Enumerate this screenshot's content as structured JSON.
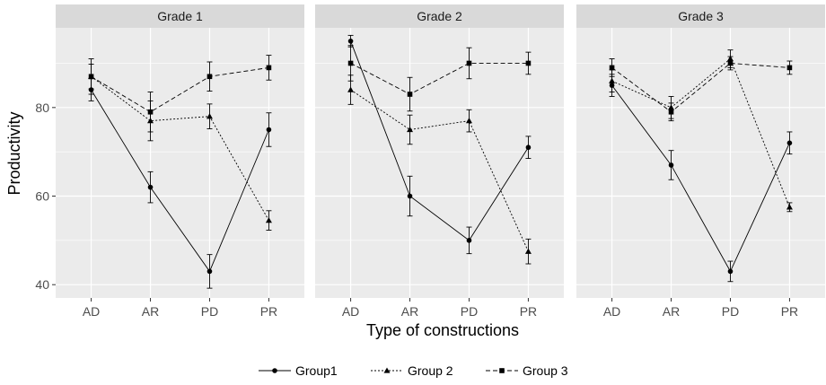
{
  "chart_data": {
    "type": "line",
    "facet_by": "grade",
    "xlabel": "Type of constructions",
    "ylabel": "Productivity",
    "categories": [
      "AD",
      "AR",
      "PD",
      "PR"
    ],
    "ylim": [
      37,
      98
    ],
    "yticks": [
      40,
      60,
      80
    ],
    "grid": true,
    "legend_position": "bottom",
    "panels": [
      {
        "title": "Grade 1",
        "series": [
          {
            "name": "Group1",
            "values": [
              84,
              62,
              43,
              75
            ],
            "err": [
              2.5,
              3.5,
              3.8,
              3.8
            ]
          },
          {
            "name": "Group 2",
            "values": [
              87,
              77,
              78,
              54.5
            ],
            "err": [
              2.8,
              4.5,
              2.8,
              2.2
            ]
          },
          {
            "name": "Group 3",
            "values": [
              87,
              79,
              87,
              89
            ],
            "err": [
              4.0,
              4.5,
              3.3,
              2.8
            ]
          }
        ]
      },
      {
        "title": "Grade 2",
        "series": [
          {
            "name": "Group1",
            "values": [
              95,
              60,
              50,
              71
            ],
            "err": [
              1.3,
              4.5,
              3.0,
              2.5
            ]
          },
          {
            "name": "Group 2",
            "values": [
              84,
              75,
              77,
              47.5
            ],
            "err": [
              3.3,
              3.3,
              2.5,
              2.8
            ]
          },
          {
            "name": "Group 3",
            "values": [
              90,
              83,
              90,
              90
            ],
            "err": [
              4.0,
              3.8,
              3.5,
              2.5
            ]
          }
        ]
      },
      {
        "title": "Grade 3",
        "series": [
          {
            "name": "Group1",
            "values": [
              85,
              67,
              43,
              72
            ],
            "err": [
              2.5,
              3.3,
              2.3,
              2.5
            ]
          },
          {
            "name": "Group 2",
            "values": [
              86,
              80,
              91,
              57.5
            ],
            "err": [
              2.5,
              2.5,
              2.0,
              1.0
            ]
          },
          {
            "name": "Group 3",
            "values": [
              89,
              79,
              90,
              89
            ],
            "err": [
              2.0,
              2.0,
              1.5,
              1.5
            ]
          }
        ]
      }
    ]
  },
  "legend": {
    "items": [
      {
        "label": "Group1",
        "marker": "circle",
        "dash": "solid"
      },
      {
        "label": "Group 2",
        "marker": "triangle",
        "dash": "dotted"
      },
      {
        "label": "Group 3",
        "marker": "square",
        "dash": "dashed"
      }
    ]
  },
  "colors": {
    "panel_background": "#ebebeb",
    "strip_background": "#d9d9d9",
    "grid_line": "#ffffff",
    "series": "#000000"
  }
}
